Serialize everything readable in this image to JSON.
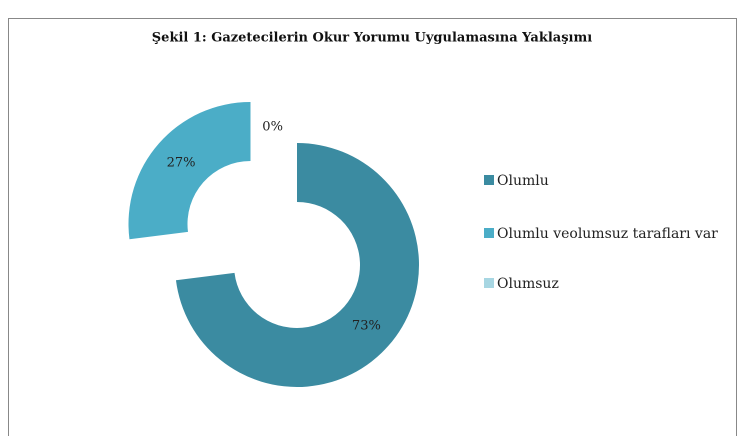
{
  "chart_data": {
    "type": "donut",
    "title": "Şekil 1: Gazetecilerin Okur Yorumu Uygulamasına Yaklaşımı",
    "categories": [
      "Olumlu",
      "Olumlu veolumsuz tarafları var",
      "Olumsuz"
    ],
    "values": [
      73,
      27,
      0
    ],
    "value_labels": [
      "73%",
      "27%",
      "0%"
    ],
    "colors": [
      "#3b8ba1",
      "#4badc7",
      "#a7d6e2"
    ],
    "legend": "right"
  }
}
